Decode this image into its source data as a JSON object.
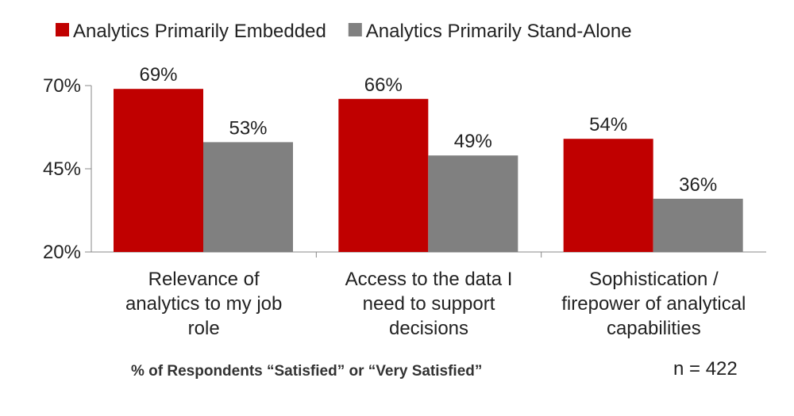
{
  "chart_data": {
    "type": "bar",
    "categories": [
      [
        "Relevance of",
        "analytics to my job",
        "role"
      ],
      [
        "Access to the data I",
        "need to support",
        "decisions"
      ],
      [
        "Sophistication /",
        "firepower of analytical",
        "capabilities"
      ]
    ],
    "series": [
      {
        "name": "Analytics Primarily Embedded",
        "values": [
          69,
          66,
          54
        ],
        "labels": [
          "69%",
          "66%",
          "54%"
        ],
        "color": "#c00000"
      },
      {
        "name": "Analytics Primarily Stand-Alone",
        "values": [
          53,
          49,
          36
        ],
        "labels": [
          "53%",
          "49%",
          "36%"
        ],
        "color": "#808080"
      }
    ],
    "y_ticks": [
      {
        "value": 70,
        "label": "70%"
      },
      {
        "value": 45,
        "label": "45%"
      },
      {
        "value": 20,
        "label": "20%"
      }
    ],
    "ylim": [
      20,
      70
    ],
    "legend_position": "top",
    "grid": false
  },
  "footnote": "% of Respondents “Satisfied” or “Very Satisfied”",
  "sample_size": "n =  422"
}
